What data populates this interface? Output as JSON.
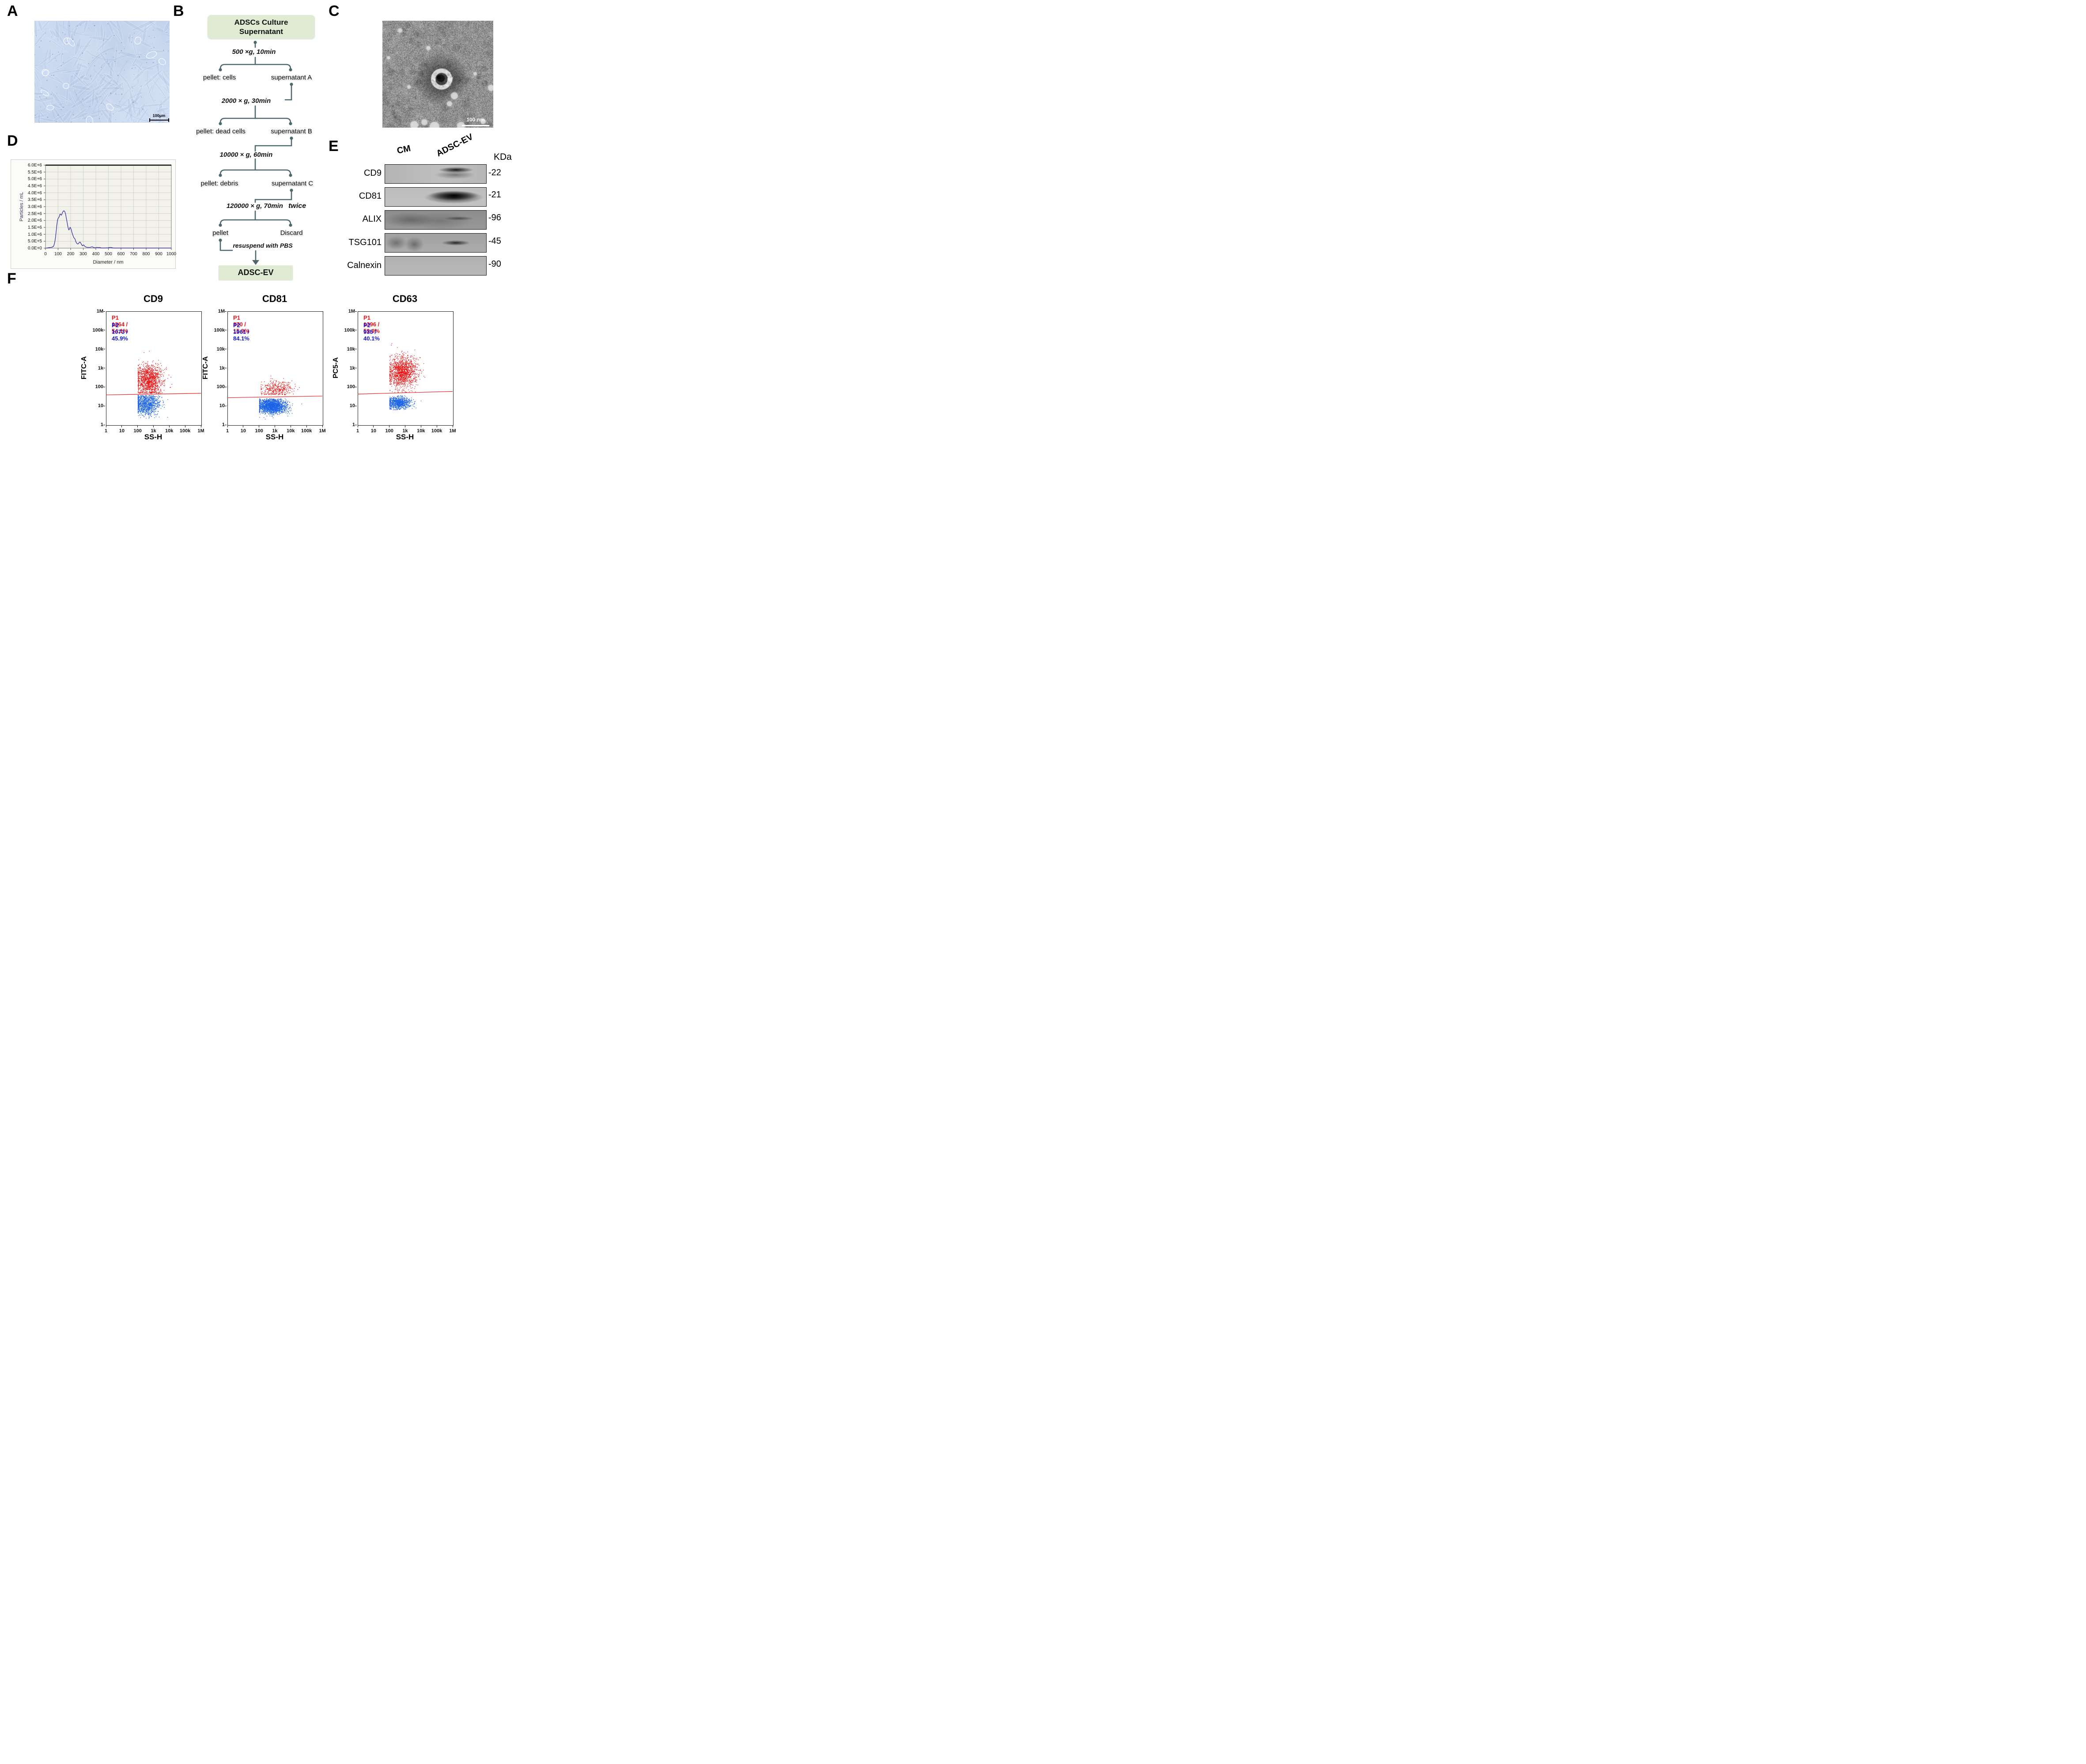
{
  "panels": {
    "a": {
      "label": "A",
      "content": "phase-contrast micrograph of cultured ADSCs",
      "scalebar": "100μm"
    },
    "b": {
      "label": "B",
      "start_box_line1": "ADSCs Culture",
      "start_box_line2": "Supernatant",
      "steps": [
        {
          "condition": "500 ×g,  10min",
          "pellet": "pellet: cells",
          "supernatant": "supernatant A"
        },
        {
          "condition": "2000 × g,  30min",
          "pellet": "pellet: dead cells",
          "supernatant": "supernatant B"
        },
        {
          "condition": "10000 × g,  60min",
          "pellet": "pellet: debris",
          "supernatant": "supernatant C"
        },
        {
          "condition": "120000 × g,  70min",
          "emphasis": "twice",
          "pellet": "pellet",
          "supernatant": "Discard"
        }
      ],
      "resuspend_note": "resuspend with PBS",
      "end_box": "ADSC-EV",
      "box_color": "#dfecd3",
      "connector_color": "#4d686c"
    },
    "c": {
      "label": "C",
      "content": "TEM image of extracellular vesicle",
      "scalebar": "100 nm"
    },
    "d": {
      "label": "D"
    },
    "e": {
      "label": "E",
      "lanes": [
        "CM",
        "ADSC-EV"
      ],
      "unit_label": "KDa",
      "rows": [
        {
          "protein": "CD9",
          "kda": "-22"
        },
        {
          "protein": "CD81",
          "kda": "-21"
        },
        {
          "protein": "ALIX",
          "kda": "-96"
        },
        {
          "protein": "TSG101",
          "kda": "-45"
        },
        {
          "protein": "Calnexin",
          "kda": "-90"
        }
      ]
    },
    "f": {
      "label": "F",
      "axis_tick_labels": [
        "1",
        "10",
        "100",
        "1k",
        "10k",
        "100k",
        "1M"
      ]
    }
  },
  "chart_data": [
    {
      "id": "nta",
      "type": "line",
      "panel": "D",
      "xlabel": "Diameter / nm",
      "ylabel": "Particles / mL",
      "xlim": [
        0,
        1000
      ],
      "ylim_particles_per_ml": [
        0,
        6000000
      ],
      "grid": true,
      "xticks": [
        0,
        100,
        200,
        300,
        400,
        500,
        600,
        700,
        800,
        900,
        1000
      ],
      "ytick_labels": [
        "6.0E+6",
        "5.5E+6",
        "5.0E+6",
        "4.5E+6",
        "4.0E+6",
        "3.5E+6",
        "3.0E+6",
        "2.5E+6",
        "2.0E+6",
        "1.5E+6",
        "1.0E+6",
        "5.0E+5",
        "0.0E+0"
      ],
      "line_color": "#2b2b9e",
      "points_x_nm_y_millions": [
        [
          0,
          0.0
        ],
        [
          15,
          0.02
        ],
        [
          30,
          0.04
        ],
        [
          45,
          0.05
        ],
        [
          55,
          0.08
        ],
        [
          65,
          0.15
        ],
        [
          70,
          0.3
        ],
        [
          75,
          0.5
        ],
        [
          80,
          0.8
        ],
        [
          85,
          1.2
        ],
        [
          90,
          1.65
        ],
        [
          95,
          2.0
        ],
        [
          100,
          2.15
        ],
        [
          105,
          2.2
        ],
        [
          110,
          2.3
        ],
        [
          115,
          2.45
        ],
        [
          118,
          2.47
        ],
        [
          122,
          2.42
        ],
        [
          126,
          2.38
        ],
        [
          130,
          2.45
        ],
        [
          135,
          2.58
        ],
        [
          140,
          2.65
        ],
        [
          145,
          2.7
        ],
        [
          150,
          2.68
        ],
        [
          155,
          2.6
        ],
        [
          160,
          2.45
        ],
        [
          165,
          2.2
        ],
        [
          170,
          1.95
        ],
        [
          175,
          1.7
        ],
        [
          178,
          1.55
        ],
        [
          182,
          1.4
        ],
        [
          186,
          1.32
        ],
        [
          190,
          1.38
        ],
        [
          195,
          1.5
        ],
        [
          198,
          1.48
        ],
        [
          202,
          1.4
        ],
        [
          206,
          1.3
        ],
        [
          210,
          1.15
        ],
        [
          215,
          1.0
        ],
        [
          220,
          0.88
        ],
        [
          224,
          0.78
        ],
        [
          228,
          0.73
        ],
        [
          232,
          0.7
        ],
        [
          236,
          0.62
        ],
        [
          240,
          0.5
        ],
        [
          245,
          0.4
        ],
        [
          250,
          0.34
        ],
        [
          255,
          0.3
        ],
        [
          260,
          0.31
        ],
        [
          265,
          0.36
        ],
        [
          270,
          0.42
        ],
        [
          274,
          0.44
        ],
        [
          278,
          0.41
        ],
        [
          282,
          0.34
        ],
        [
          286,
          0.27
        ],
        [
          290,
          0.21
        ],
        [
          294,
          0.18
        ],
        [
          298,
          0.2
        ],
        [
          302,
          0.23
        ],
        [
          306,
          0.21
        ],
        [
          310,
          0.16
        ],
        [
          316,
          0.11
        ],
        [
          322,
          0.08
        ],
        [
          330,
          0.06
        ],
        [
          340,
          0.05
        ],
        [
          350,
          0.05
        ],
        [
          358,
          0.06
        ],
        [
          365,
          0.09
        ],
        [
          370,
          0.1
        ],
        [
          376,
          0.08
        ],
        [
          382,
          0.05
        ],
        [
          390,
          0.03
        ],
        [
          398,
          0.03
        ],
        [
          405,
          0.05
        ],
        [
          412,
          0.05
        ],
        [
          420,
          0.04
        ],
        [
          428,
          0.05
        ],
        [
          435,
          0.04
        ],
        [
          442,
          0.02
        ],
        [
          455,
          0.015
        ],
        [
          470,
          0.015
        ],
        [
          485,
          0.02
        ],
        [
          495,
          0.02
        ],
        [
          505,
          0.04
        ],
        [
          515,
          0.05
        ],
        [
          525,
          0.04
        ],
        [
          535,
          0.02
        ],
        [
          550,
          0.01
        ],
        [
          575,
          0.01
        ],
        [
          600,
          0.01
        ],
        [
          650,
          0.008
        ],
        [
          700,
          0.008
        ],
        [
          750,
          0.008
        ],
        [
          800,
          0.008
        ],
        [
          850,
          0.008
        ],
        [
          900,
          0.008
        ],
        [
          950,
          0.008
        ],
        [
          1000,
          0.008
        ]
      ]
    },
    {
      "id": "cd9",
      "type": "scatter",
      "panel": "F",
      "title": "CD9",
      "xlabel": "SS-H",
      "ylabel": "FITC-A",
      "xlim": [
        1,
        1000000
      ],
      "ylim": [
        1,
        1000000
      ],
      "log_scale": true,
      "stats": {
        "p1": "P1 1264 / 54.1%",
        "p2": "P2 1073 / 45.9%"
      },
      "colors": {
        "p1": "#ee1111",
        "p2": "#1b63e8",
        "p1_text": "#ee1111",
        "p2_text": "#1616d8"
      },
      "gate": {
        "y_start": 38,
        "y_end": 46,
        "color": "#e81e1e"
      },
      "seed": 101,
      "clusters": {
        "p1": {
          "n": 1264,
          "mx": 2.72,
          "sx": 0.42,
          "my": 2.38,
          "sy": 0.4,
          "clipx": [
            2.0,
            5.05
          ],
          "clipy": [
            1.68,
            4.0
          ]
        },
        "p2": {
          "n": 1073,
          "mx": 2.55,
          "sx": 0.42,
          "my": 1.1,
          "sy": 0.28,
          "clipx": [
            2.0,
            4.85
          ],
          "clipy": [
            0.35,
            1.58
          ]
        }
      }
    },
    {
      "id": "cd81",
      "type": "scatter",
      "panel": "F",
      "title": "CD81",
      "xlabel": "SS-H",
      "ylabel": "FITC-A",
      "xlim": [
        1,
        1000000
      ],
      "ylim": [
        1,
        1000000
      ],
      "log_scale": true,
      "stats": {
        "p1": "P1 370 / 15.9%",
        "p2": "P2 1961 / 84.1%"
      },
      "colors": {
        "p1": "#ee1111",
        "p2": "#1b63e8",
        "p1_text": "#ee1111",
        "p2_text": "#1616d8"
      },
      "gate": {
        "y_start": 27,
        "y_end": 33,
        "color": "#e81e1e"
      },
      "seed": 202,
      "clusters": {
        "p1": {
          "n": 370,
          "mx": 3.1,
          "sx": 0.55,
          "my": 1.9,
          "sy": 0.22,
          "clipx": [
            2.1,
            4.75
          ],
          "clipy": [
            1.6,
            2.85
          ]
        },
        "p2": {
          "n": 1961,
          "mx": 2.75,
          "sx": 0.48,
          "my": 1.0,
          "sy": 0.2,
          "clipx": [
            2.0,
            4.8
          ],
          "clipy": [
            0.3,
            1.4
          ]
        }
      }
    },
    {
      "id": "cd63",
      "type": "scatter",
      "panel": "F",
      "title": "CD63",
      "xlabel": "SS-H",
      "ylabel": "PC5-A",
      "xlim": [
        1,
        1000000
      ],
      "ylim": [
        1,
        1000000
      ],
      "log_scale": true,
      "stats": {
        "p1": "P1 1396 / 59.9%",
        "p2": "P2 935 / 40.1%"
      },
      "colors": {
        "p1": "#ee1111",
        "p2": "#1b63e8",
        "p1_text": "#ee1111",
        "p2_text": "#1616d8"
      },
      "gate": {
        "y_start": 42,
        "y_end": 58,
        "color": "#e81e1e"
      },
      "seed": 303,
      "clusters": {
        "p1": {
          "n": 1396,
          "mx": 2.8,
          "sx": 0.45,
          "my": 2.8,
          "sy": 0.42,
          "clipx": [
            2.0,
            4.8
          ],
          "clipy": [
            1.72,
            4.35
          ]
        },
        "p2": {
          "n": 935,
          "mx": 2.55,
          "sx": 0.4,
          "my": 1.18,
          "sy": 0.16,
          "clipx": [
            2.0,
            4.5
          ],
          "clipy": [
            0.8,
            1.58
          ]
        }
      }
    }
  ]
}
